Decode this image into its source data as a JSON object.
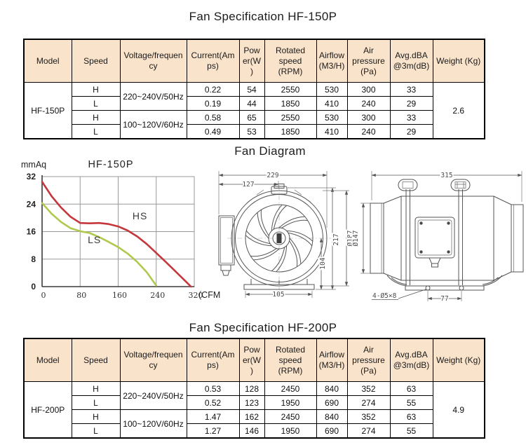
{
  "colors": {
    "table_header_bg": "#fae3cb",
    "table_border": "#000000",
    "hs_curve": "#c4373d",
    "ls_curve": "#aec94d",
    "grid": "#999999",
    "drawing_line": "#555555"
  },
  "spec_headers": [
    "Model",
    "Speed",
    "Voltage/frequency",
    "Current(Amps)",
    "Power(W)",
    "Rotated speed (RPM)",
    "Airflow (M3/H)",
    "Air pressure (Pa)",
    "Avg.dBA @3m(dB)",
    "Weight (Kg)"
  ],
  "table150": {
    "title": "Fan Specification HF-150P",
    "model": "HF-150P",
    "weight": "2.6",
    "voltages": [
      "220~240V/50Hz",
      "100~120V/60Hz"
    ],
    "rows": [
      {
        "speed": "H",
        "current": "0.22",
        "power": "54",
        "rpm": "2550",
        "airflow": "530",
        "pressure": "300",
        "dba": "33"
      },
      {
        "speed": "L",
        "current": "0.19",
        "power": "44",
        "rpm": "1850",
        "airflow": "410",
        "pressure": "240",
        "dba": "29"
      },
      {
        "speed": "H",
        "current": "0.58",
        "power": "65",
        "rpm": "2550",
        "airflow": "530",
        "pressure": "300",
        "dba": "33"
      },
      {
        "speed": "L",
        "current": "0.49",
        "power": "53",
        "rpm": "1850",
        "airflow": "410",
        "pressure": "240",
        "dba": "29"
      }
    ]
  },
  "table200": {
    "title": "Fan Specification HF-200P",
    "model": "HF-200P",
    "weight": "4.9",
    "voltages": [
      "220~240V/50Hz",
      "100~120V/60Hz"
    ],
    "rows": [
      {
        "speed": "H",
        "current": "0.53",
        "power": "128",
        "rpm": "2450",
        "airflow": "840",
        "pressure": "352",
        "dba": "63"
      },
      {
        "speed": "L",
        "current": "0.52",
        "power": "123",
        "rpm": "1950",
        "airflow": "690",
        "pressure": "274",
        "dba": "55"
      },
      {
        "speed": "H",
        "current": "1.47",
        "power": "162",
        "rpm": "2450",
        "airflow": "840",
        "pressure": "352",
        "dba": "63"
      },
      {
        "speed": "L",
        "current": "1.27",
        "power": "146",
        "rpm": "1950",
        "airflow": "690",
        "pressure": "274",
        "dba": "55"
      }
    ]
  },
  "diagram": {
    "title": "Fan Diagram",
    "front": {
      "dim_width": "229",
      "dim_inlet_width": "127",
      "dim_height": "217",
      "dim_axis_height": "104",
      "dim_base": "105",
      "dim_outer_dia": "Ø187",
      "dim_duct_dia": "Ø147"
    },
    "side": {
      "dim_length": "315",
      "dim_holes": "4-Ø5×8",
      "dim_hole_spacing": "77"
    }
  },
  "chart_data": {
    "type": "line",
    "title": "HF-150P",
    "y_unit": "mmAq",
    "x_unit": "(CFM",
    "xlabel": "",
    "ylabel": "mmAq",
    "xlim": [
      0,
      320
    ],
    "ylim": [
      0,
      32
    ],
    "x_ticks": [
      0,
      80,
      160,
      240,
      320
    ],
    "y_ticks": [
      0,
      8,
      16,
      24,
      32
    ],
    "grid": true,
    "legend_position": "inline",
    "series": [
      {
        "name": "HS",
        "color": "#c4373d",
        "label_pos": {
          "x": 190,
          "y": 19.6
        },
        "points": [
          [
            0,
            30.5
          ],
          [
            20,
            26.3
          ],
          [
            40,
            23.0
          ],
          [
            60,
            20.3
          ],
          [
            80,
            18.5
          ],
          [
            100,
            18.4
          ],
          [
            120,
            18.5
          ],
          [
            140,
            18.2
          ],
          [
            160,
            17.5
          ],
          [
            180,
            16.3
          ],
          [
            200,
            14.6
          ],
          [
            220,
            12.4
          ],
          [
            240,
            9.8
          ],
          [
            260,
            7.2
          ],
          [
            280,
            4.5
          ],
          [
            300,
            1.8
          ],
          [
            313,
            0
          ]
        ]
      },
      {
        "name": "LS",
        "color": "#aec94d",
        "label_pos": {
          "x": 96,
          "y": 12.6
        },
        "points": [
          [
            0,
            24.3
          ],
          [
            20,
            21.2
          ],
          [
            40,
            18.8
          ],
          [
            60,
            17.0
          ],
          [
            80,
            16.1
          ],
          [
            100,
            15.6
          ],
          [
            120,
            14.4
          ],
          [
            140,
            13.0
          ],
          [
            160,
            11.5
          ],
          [
            180,
            9.6
          ],
          [
            200,
            7.2
          ],
          [
            220,
            4.2
          ],
          [
            240,
            0.3
          ]
        ]
      }
    ]
  }
}
